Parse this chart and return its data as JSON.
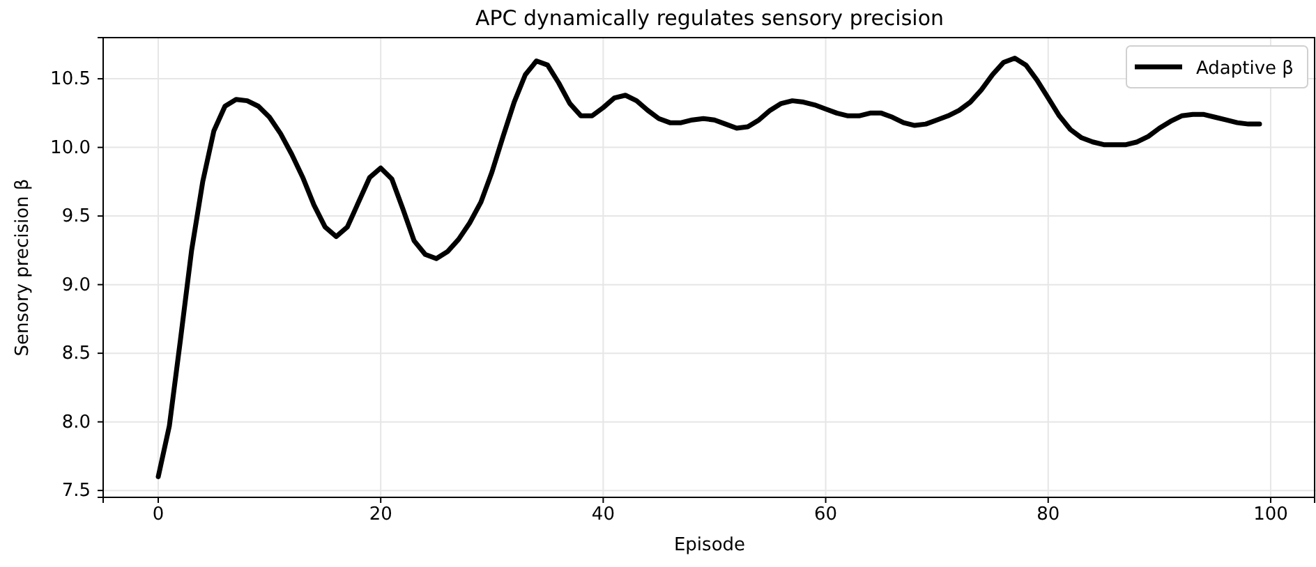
{
  "chart_data": {
    "type": "line",
    "title": "APC dynamically regulates sensory precision",
    "xlabel": "Episode",
    "ylabel": "Sensory precision β",
    "x": [
      0,
      1,
      2,
      3,
      4,
      5,
      6,
      7,
      8,
      9,
      10,
      11,
      12,
      13,
      14,
      15,
      16,
      17,
      18,
      19,
      20,
      21,
      22,
      23,
      24,
      25,
      26,
      27,
      28,
      29,
      30,
      31,
      32,
      33,
      34,
      35,
      36,
      37,
      38,
      39,
      40,
      41,
      42,
      43,
      44,
      45,
      46,
      47,
      48,
      49,
      50,
      51,
      52,
      53,
      54,
      55,
      56,
      57,
      58,
      59,
      60,
      61,
      62,
      63,
      64,
      65,
      66,
      67,
      68,
      69,
      70,
      71,
      72,
      73,
      74,
      75,
      76,
      77,
      78,
      79,
      80,
      81,
      82,
      83,
      84,
      85,
      86,
      87,
      88,
      89,
      90,
      91,
      92,
      93,
      94,
      95,
      96,
      97,
      98,
      99
    ],
    "series": [
      {
        "name": "Adaptive β",
        "color": "#000000",
        "values": [
          7.6,
          7.97,
          8.6,
          9.25,
          9.75,
          10.12,
          10.3,
          10.35,
          10.34,
          10.3,
          10.22,
          10.1,
          9.95,
          9.78,
          9.58,
          9.42,
          9.35,
          9.42,
          9.6,
          9.78,
          9.85,
          9.77,
          9.55,
          9.32,
          9.22,
          9.19,
          9.24,
          9.33,
          9.45,
          9.6,
          9.82,
          10.08,
          10.33,
          10.53,
          10.63,
          10.6,
          10.47,
          10.32,
          10.23,
          10.23,
          10.29,
          10.36,
          10.38,
          10.34,
          10.27,
          10.21,
          10.18,
          10.18,
          10.2,
          10.21,
          10.2,
          10.17,
          10.14,
          10.15,
          10.2,
          10.27,
          10.32,
          10.34,
          10.33,
          10.31,
          10.28,
          10.25,
          10.23,
          10.23,
          10.25,
          10.25,
          10.22,
          10.18,
          10.16,
          10.17,
          10.2,
          10.23,
          10.27,
          10.33,
          10.42,
          10.53,
          10.62,
          10.65,
          10.6,
          10.49,
          10.36,
          10.23,
          10.13,
          10.07,
          10.04,
          10.02,
          10.02,
          10.02,
          10.04,
          10.08,
          10.14,
          10.19,
          10.23,
          10.24,
          10.24,
          10.22,
          10.2,
          10.18,
          10.17,
          10.17
        ]
      }
    ],
    "xlim": [
      -4.95,
      103.95
    ],
    "ylim": [
      7.45,
      10.8
    ],
    "xticks": [
      0,
      20,
      40,
      60,
      80,
      100
    ],
    "yticks": [
      {
        "value": 7.5,
        "label": "7.5"
      },
      {
        "value": 8,
        "label": "8.0"
      },
      {
        "value": 8.5,
        "label": "8.5"
      },
      {
        "value": 9,
        "label": "9.0"
      },
      {
        "value": 9.5,
        "label": "9.5"
      },
      {
        "value": 10,
        "label": "10.0"
      },
      {
        "value": 10.5,
        "label": "10.5"
      }
    ],
    "grid": true,
    "legend": "top right",
    "line_style": "solid",
    "marker": "none"
  }
}
